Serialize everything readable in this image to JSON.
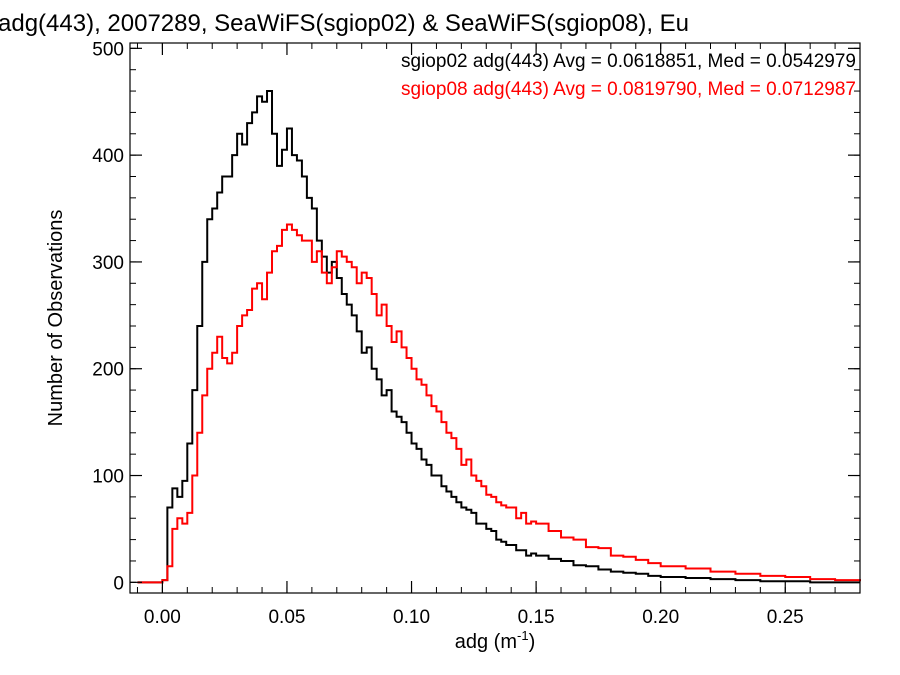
{
  "chart_data": {
    "type": "line",
    "title": "adg(443), 2007289, SeaWiFS(sgiop02) & SeaWiFS(sgiop08), Eu",
    "xlabel_base": "adg (m",
    "xlabel_sup": "-1",
    "xlabel_close": ")",
    "ylabel": "Number of Observations",
    "xlim": [
      -0.013,
      0.28
    ],
    "ylim": [
      -10,
      505
    ],
    "xticks": [
      {
        "value": 0.0,
        "label": "0.00"
      },
      {
        "value": 0.05,
        "label": "0.05"
      },
      {
        "value": 0.1,
        "label": "0.10"
      },
      {
        "value": 0.15,
        "label": "0.15"
      },
      {
        "value": 0.2,
        "label": "0.20"
      },
      {
        "value": 0.25,
        "label": "0.25"
      }
    ],
    "yticks": [
      {
        "value": 0,
        "label": "0"
      },
      {
        "value": 100,
        "label": "100"
      },
      {
        "value": 200,
        "label": "200"
      },
      {
        "value": 300,
        "label": "300"
      },
      {
        "value": 400,
        "label": "400"
      },
      {
        "value": 500,
        "label": "500"
      }
    ],
    "grid": false,
    "legend_position": "top-right",
    "series": [
      {
        "color": "#000000",
        "stats_label": "sgiop02 adg(443) Avg = 0.0618851, Med = 0.0542979",
        "x": [
          -0.01,
          -0.005,
          0.0,
          0.002,
          0.004,
          0.006,
          0.008,
          0.01,
          0.012,
          0.014,
          0.016,
          0.018,
          0.02,
          0.022,
          0.024,
          0.026,
          0.028,
          0.03,
          0.032,
          0.034,
          0.036,
          0.038,
          0.04,
          0.042,
          0.044,
          0.046,
          0.048,
          0.05,
          0.052,
          0.054,
          0.056,
          0.058,
          0.06,
          0.062,
          0.064,
          0.066,
          0.068,
          0.07,
          0.072,
          0.074,
          0.076,
          0.078,
          0.08,
          0.082,
          0.084,
          0.086,
          0.088,
          0.09,
          0.092,
          0.094,
          0.096,
          0.098,
          0.1,
          0.102,
          0.104,
          0.106,
          0.108,
          0.11,
          0.112,
          0.114,
          0.116,
          0.118,
          0.12,
          0.122,
          0.124,
          0.126,
          0.128,
          0.13,
          0.132,
          0.134,
          0.136,
          0.138,
          0.14,
          0.142,
          0.144,
          0.146,
          0.148,
          0.15,
          0.155,
          0.16,
          0.165,
          0.17,
          0.175,
          0.18,
          0.185,
          0.19,
          0.195,
          0.2,
          0.21,
          0.22,
          0.23,
          0.24,
          0.25,
          0.26,
          0.27,
          0.28
        ],
        "y": [
          0,
          0,
          2,
          70,
          88,
          80,
          95,
          130,
          180,
          240,
          300,
          340,
          350,
          365,
          380,
          380,
          400,
          420,
          410,
          430,
          440,
          455,
          450,
          460,
          420,
          390,
          405,
          425,
          400,
          395,
          380,
          360,
          350,
          320,
          305,
          290,
          300,
          285,
          270,
          260,
          250,
          235,
          215,
          220,
          200,
          190,
          175,
          180,
          160,
          155,
          150,
          140,
          130,
          125,
          115,
          110,
          100,
          100,
          90,
          85,
          80,
          75,
          70,
          68,
          65,
          55,
          55,
          50,
          48,
          40,
          38,
          35,
          35,
          30,
          30,
          25,
          27,
          25,
          22,
          20,
          16,
          15,
          12,
          10,
          9,
          8,
          6,
          5,
          4,
          3,
          2,
          1,
          1,
          0,
          0,
          0
        ]
      },
      {
        "color": "#ff0000",
        "stats_label": "sgiop08 adg(443) Avg = 0.0819790, Med = 0.0712987",
        "x": [
          -0.01,
          -0.005,
          0.0,
          0.002,
          0.004,
          0.006,
          0.008,
          0.01,
          0.012,
          0.014,
          0.016,
          0.018,
          0.02,
          0.022,
          0.024,
          0.026,
          0.028,
          0.03,
          0.032,
          0.034,
          0.036,
          0.038,
          0.04,
          0.042,
          0.044,
          0.046,
          0.048,
          0.05,
          0.052,
          0.054,
          0.056,
          0.058,
          0.06,
          0.062,
          0.064,
          0.066,
          0.068,
          0.07,
          0.072,
          0.074,
          0.076,
          0.078,
          0.08,
          0.082,
          0.084,
          0.086,
          0.088,
          0.09,
          0.092,
          0.094,
          0.096,
          0.098,
          0.1,
          0.102,
          0.104,
          0.106,
          0.108,
          0.11,
          0.112,
          0.114,
          0.116,
          0.118,
          0.12,
          0.122,
          0.124,
          0.126,
          0.128,
          0.13,
          0.132,
          0.134,
          0.136,
          0.138,
          0.14,
          0.142,
          0.144,
          0.146,
          0.148,
          0.15,
          0.155,
          0.16,
          0.165,
          0.17,
          0.175,
          0.18,
          0.185,
          0.19,
          0.195,
          0.2,
          0.21,
          0.22,
          0.23,
          0.24,
          0.25,
          0.26,
          0.27,
          0.28
        ],
        "y": [
          0,
          0,
          2,
          15,
          50,
          60,
          55,
          65,
          100,
          140,
          175,
          200,
          215,
          230,
          210,
          205,
          215,
          240,
          250,
          255,
          275,
          280,
          265,
          290,
          310,
          315,
          330,
          335,
          330,
          325,
          320,
          320,
          300,
          310,
          290,
          280,
          295,
          310,
          305,
          300,
          295,
          280,
          290,
          285,
          270,
          250,
          260,
          240,
          225,
          235,
          220,
          210,
          200,
          190,
          185,
          175,
          165,
          160,
          150,
          140,
          135,
          125,
          110,
          115,
          100,
          95,
          90,
          82,
          80,
          75,
          72,
          70,
          70,
          60,
          65,
          55,
          57,
          55,
          48,
          42,
          40,
          33,
          32,
          25,
          24,
          21,
          18,
          15,
          13,
          10,
          8,
          6,
          5,
          3,
          2,
          1
        ]
      }
    ]
  }
}
